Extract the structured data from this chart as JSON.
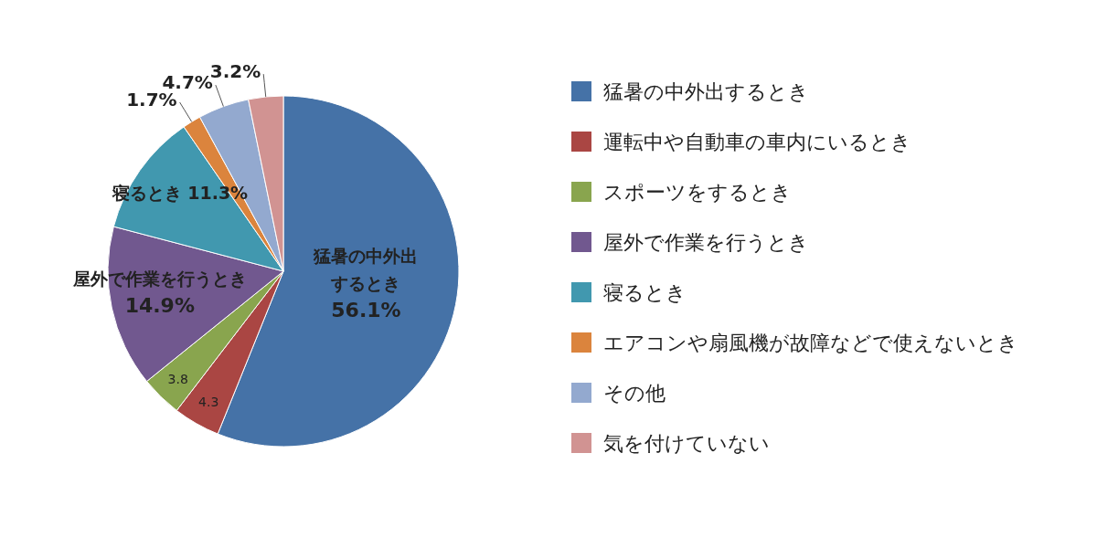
{
  "chart_data": {
    "type": "pie",
    "categories": [
      "猛暑の中外出するとき",
      "運転中や自動車の車内にいるとき",
      "スポーツをするとき",
      "屋外で作業を行うとき",
      "寝るとき",
      "エアコンや扇風機が故障などで使えないとき",
      "その他",
      "気を付けていない"
    ],
    "values": [
      56.1,
      4.3,
      3.8,
      14.9,
      11.3,
      1.7,
      4.7,
      3.2
    ],
    "colors": [
      "#4572a7",
      "#aa4643",
      "#89a54e",
      "#71588f",
      "#4198af",
      "#db843d",
      "#93a9cf",
      "#d19392"
    ],
    "value_labels": [
      "猛暑の中外出するとき 56.1%",
      "4.3",
      "3.8",
      "屋外で作業を行うとき 14.9%",
      "寝るとき 11.3%",
      "1.7%",
      "4.7%",
      "3.2%"
    ],
    "legend": "right"
  }
}
